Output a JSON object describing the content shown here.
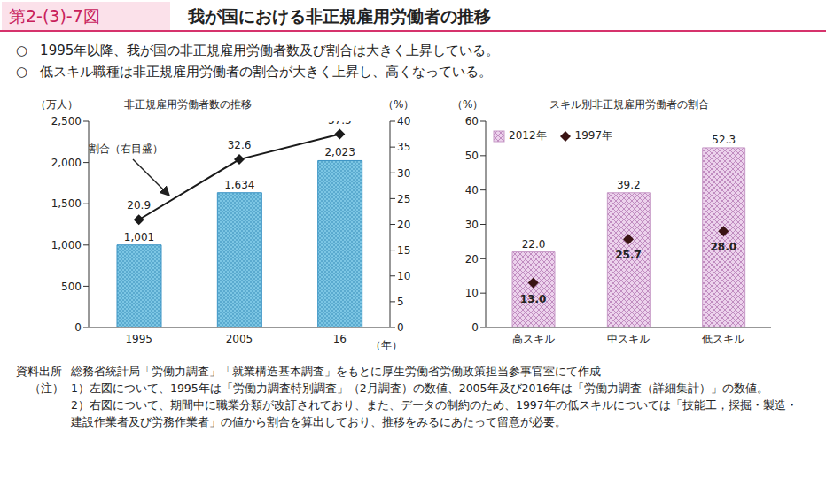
{
  "figure_number": "第2-(3)-7図",
  "title": "我が国における非正規雇用労働者の推移",
  "bullet_mark": "○",
  "bullets": [
    "1995年以降、我が国の非正規雇用労働者数及び割合は大きく上昇している。",
    "低スキル職種は非正規雇用労働者の割合が大きく上昇し、高くなっている。"
  ],
  "source_label": "資料出所",
  "source": "総務省統計局「労働力調査」「就業構造基本調査」をもとに厚生労働省労働政策担当参事官室にて作成",
  "notes_label": "（注）",
  "notes": [
    "1）左図について、1995年は「労働力調査特別調査」（2月調査）の数値、2005年及び2016年は「労働力調査（詳細集計）」の数値。",
    "2）右図について、期間中に職業分類が改訂されており、また、データの制約のため、1997年の低スキルについては「技能工，採掘・製造・建設作業者及び労務作業者」の値から割合を算出しており、推移をみるにあたって留意が必要。"
  ],
  "chart_data": [
    {
      "type": "bar",
      "title": "非正規雇用労働者数の推移",
      "categories": [
        "1995",
        "2005",
        "16"
      ],
      "xlabel": "（年）",
      "ylabel": "（万人）",
      "y2label": "（%）",
      "ylim": [
        0,
        2500
      ],
      "yticks": [
        0,
        500,
        {
          "value": 1000,
          "label": "1,000"
        },
        {
          "value": 1500,
          "label": "1,500"
        },
        {
          "value": 2000,
          "label": "2,000"
        },
        {
          "value": 2500,
          "label": "2,500"
        }
      ],
      "y2lim": [
        0,
        40
      ],
      "y2ticks": [
        0,
        5,
        10,
        15,
        20,
        25,
        30,
        35,
        40
      ],
      "data_labels": true,
      "series": [
        {
          "type": "bar",
          "color": "#7cc6e4",
          "values": [
            1001,
            1634,
            2023
          ],
          "value_labels": [
            "1,001",
            "1,634",
            "2,023"
          ]
        },
        {
          "name": "割合（右目盛）",
          "type": "line",
          "axis": "y2",
          "color": "#1a1a1a",
          "marker": "diamond",
          "values": [
            20.9,
            32.6,
            37.5
          ]
        }
      ]
    },
    {
      "type": "bar",
      "title": "スキル別非正規雇用労働者の割合",
      "categories": [
        "高スキル",
        "中スキル",
        "低スキル"
      ],
      "ylabel": "（%）",
      "ylim": [
        0,
        60
      ],
      "yticks": [
        0,
        10,
        20,
        30,
        40,
        50,
        60
      ],
      "legend": "upper left",
      "data_labels": true,
      "series": [
        {
          "name": "2012年",
          "type": "bar",
          "color": "#ecd2ec",
          "values": [
            22.0,
            39.2,
            52.3
          ],
          "value_labels": [
            "22.0",
            "39.2",
            "52.3"
          ]
        },
        {
          "name": "1997年",
          "type": "scatter",
          "color": "#3a1414",
          "marker": "diamond",
          "values": [
            13.0,
            25.7,
            28.0
          ],
          "value_labels": [
            "13.0",
            "25.7",
            "28.0"
          ]
        }
      ]
    }
  ]
}
